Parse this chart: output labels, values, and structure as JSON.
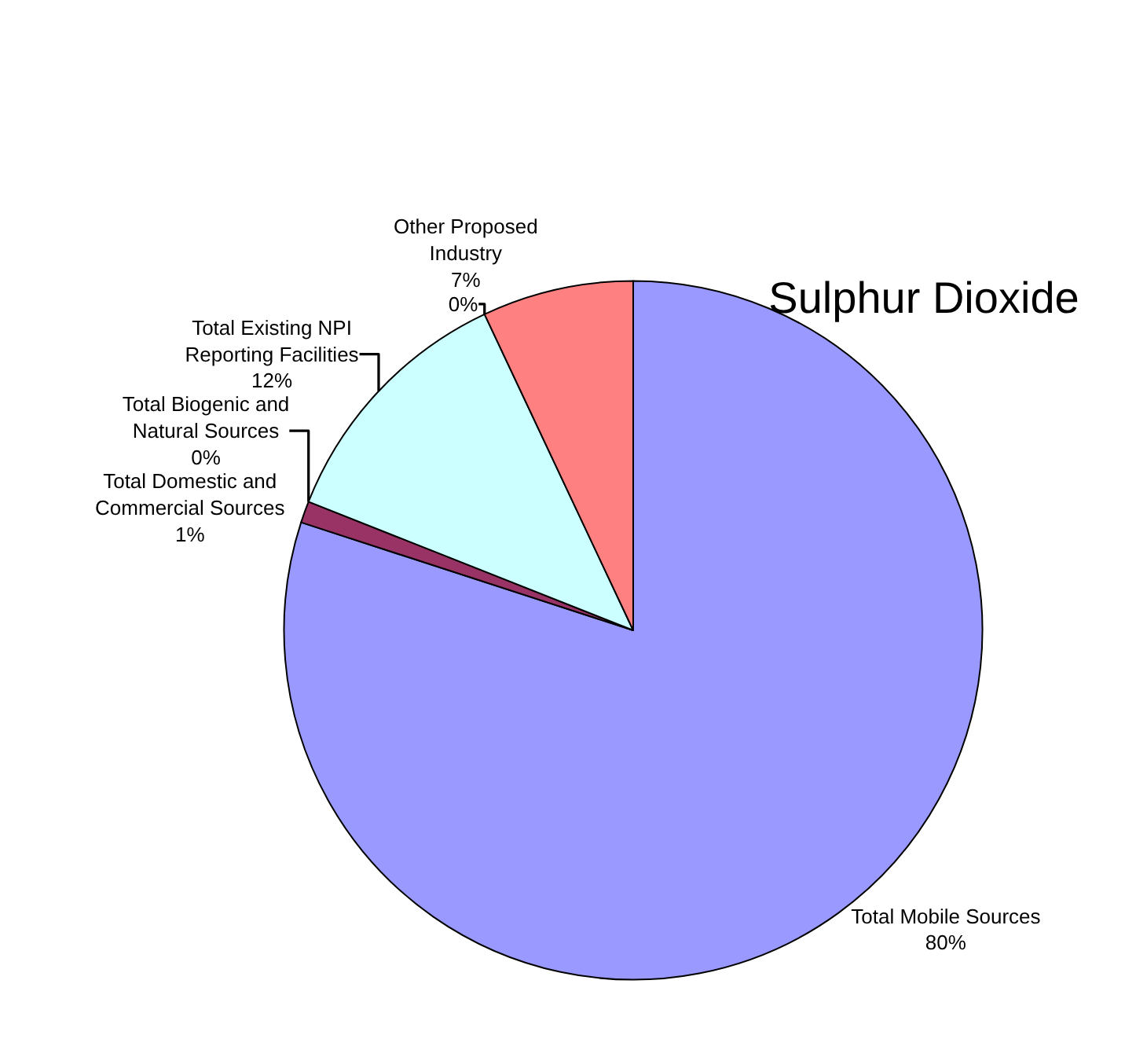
{
  "chart_data": {
    "type": "pie",
    "title": "Sulphur Dioxide",
    "categories": [
      "Total Mobile Sources",
      "Total Domestic and Commercial Sources",
      "Total Biogenic and Natural Sources",
      "Total Existing NPI Reporting Facilities",
      null,
      "Other Proposed Industry"
    ],
    "values": [
      80,
      1,
      0,
      12,
      0,
      7
    ],
    "value_labels": [
      "80%",
      "1%",
      "0%",
      "12%",
      "0%",
      "7%"
    ],
    "colors": [
      "#9999ff",
      "#993366",
      "#ffffcc",
      "#ccffff",
      "#660066",
      "#ff8080"
    ]
  }
}
